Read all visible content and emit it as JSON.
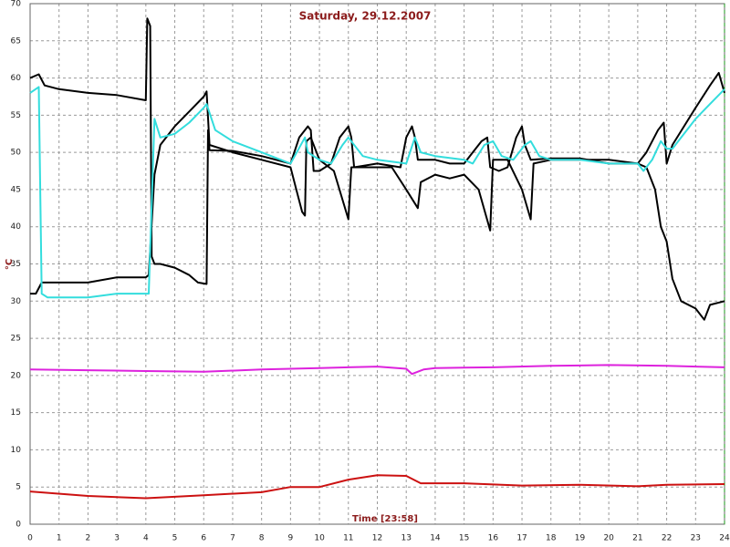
{
  "chart_data": {
    "type": "line",
    "title": "Saturday, 29.12.2007",
    "x_label": "Time [23:58]",
    "y_label": "°C",
    "xlim": [
      0,
      24
    ],
    "xticks": [
      0,
      1,
      2,
      3,
      4,
      5,
      6,
      7,
      8,
      9,
      10,
      11,
      12,
      13,
      14,
      15,
      16,
      17,
      18,
      19,
      20,
      21,
      22,
      23,
      24
    ],
    "ylim": [
      0,
      70
    ],
    "yticks": [
      0,
      5,
      10,
      15,
      20,
      25,
      30,
      35,
      40,
      45,
      50,
      55,
      60,
      65,
      70
    ],
    "grid": true,
    "series": [
      {
        "color": "#000000",
        "x": [
          0,
          0.3,
          0.5,
          1,
          2,
          3,
          4,
          4.05,
          4.15,
          4.2,
          4.3,
          4.5,
          5,
          5.5,
          5.8,
          6.1,
          6.15,
          6.2,
          7,
          8,
          9,
          9.3,
          9.6,
          9.7,
          9.8,
          10,
          10.4,
          10.7,
          11,
          11.1,
          11.2,
          12,
          12.8,
          13,
          13.2,
          13.3,
          13.4,
          14,
          14.5,
          15,
          15.3,
          15.6,
          15.8,
          15.9,
          16.2,
          16.5,
          16.8,
          17,
          17.1,
          17.3,
          18,
          19,
          20,
          21,
          21.3,
          21.7,
          21.9,
          22,
          22.2,
          23,
          23.5,
          23.8,
          24
        ],
        "values": [
          60,
          60.5,
          59,
          58.5,
          58,
          57.7,
          57,
          68,
          67,
          36,
          35,
          35,
          34.5,
          33.5,
          32.5,
          32.3,
          53,
          50.3,
          50.2,
          49.5,
          48.5,
          52,
          53.5,
          53,
          47.5,
          47.5,
          48.5,
          52,
          53.5,
          52,
          48,
          48.5,
          48,
          52,
          53.5,
          52,
          49,
          49,
          48.5,
          48.5,
          50,
          51.5,
          52,
          48,
          47.5,
          48,
          52,
          53.5,
          51,
          49,
          49.2,
          49.2,
          48.5,
          48.5,
          50,
          53,
          54,
          48.5,
          51,
          56,
          59,
          60.7,
          58
        ]
      },
      {
        "color": "#000000",
        "x": [
          0,
          0.2,
          0.4,
          1,
          2,
          3,
          4,
          4.1,
          4.3,
          4.5,
          5,
          5.5,
          6,
          6.1,
          6.2,
          7,
          8,
          9,
          9.2,
          9.4,
          9.5,
          9.55,
          9.7,
          10,
          10.5,
          11,
          11.1,
          12,
          12.5,
          13,
          13.4,
          13.5,
          14,
          14.5,
          15,
          15.5,
          15.9,
          16,
          16.5,
          17,
          17.3,
          17.4,
          18,
          19,
          20,
          21,
          21.3,
          21.6,
          21.8,
          22,
          22.2,
          22.5,
          23,
          23.3,
          23.5,
          24
        ],
        "values": [
          31,
          31,
          32.5,
          32.5,
          32.5,
          33.2,
          33.2,
          33.5,
          47,
          51,
          53.5,
          55.5,
          57.5,
          58.2,
          51,
          50,
          49,
          48,
          45,
          42,
          41.5,
          51.5,
          52,
          49,
          47.5,
          41,
          48,
          48,
          48,
          45,
          42.5,
          46,
          47,
          46.5,
          47,
          45,
          39.5,
          49,
          49,
          45,
          41,
          48.5,
          49,
          49,
          49,
          48.5,
          48,
          45,
          40,
          38,
          33,
          30,
          29,
          27.5,
          29.5,
          30
        ]
      },
      {
        "color": "#33dddd",
        "x": [
          0,
          0.3,
          0.4,
          0.6,
          1,
          2,
          3,
          4,
          4.1,
          4.3,
          4.5,
          5,
          5.5,
          6,
          6.1,
          6.4,
          7,
          8,
          9,
          9.5,
          9.6,
          10,
          10.4,
          10.8,
          11,
          11.5,
          12,
          13,
          13.3,
          13.5,
          14,
          15,
          15.3,
          15.7,
          16,
          16.3,
          16.7,
          17.1,
          17.3,
          17.6,
          18,
          19,
          20,
          21,
          21.2,
          21.5,
          21.8,
          22,
          22.2,
          23,
          23.5,
          24
        ],
        "values": [
          58,
          58.8,
          31,
          30.5,
          30.5,
          30.5,
          31,
          31,
          31,
          54.5,
          52,
          52.5,
          54,
          56,
          56.5,
          53,
          51.5,
          50,
          48.5,
          52,
          50,
          49,
          48.5,
          51,
          52,
          49.5,
          49,
          48.5,
          52,
          50,
          49.5,
          49,
          48.5,
          51,
          51.5,
          49.5,
          49,
          51,
          51.5,
          49.5,
          49,
          49,
          48.5,
          48.5,
          47.5,
          49,
          51.5,
          50.5,
          50.5,
          54.5,
          56.5,
          58.5
        ]
      },
      {
        "color": "#dd22dd",
        "x": [
          0,
          2,
          4,
          6,
          8,
          10,
          12,
          13,
          13.2,
          13.6,
          14,
          16,
          18,
          20,
          22,
          24
        ],
        "values": [
          20.8,
          20.7,
          20.6,
          20.5,
          20.8,
          21,
          21.2,
          20.9,
          20.2,
          20.8,
          21,
          21.1,
          21.3,
          21.4,
          21.3,
          21.1
        ]
      },
      {
        "color": "#cc1111",
        "x": [
          0,
          2,
          4,
          6,
          8,
          9,
          10,
          11,
          12,
          13,
          13.5,
          15,
          17,
          19,
          21,
          22,
          24
        ],
        "values": [
          4.4,
          3.8,
          3.5,
          3.9,
          4.3,
          5,
          5,
          6,
          6.6,
          6.5,
          5.5,
          5.5,
          5.2,
          5.3,
          5.1,
          5.3,
          5.4
        ]
      }
    ]
  }
}
